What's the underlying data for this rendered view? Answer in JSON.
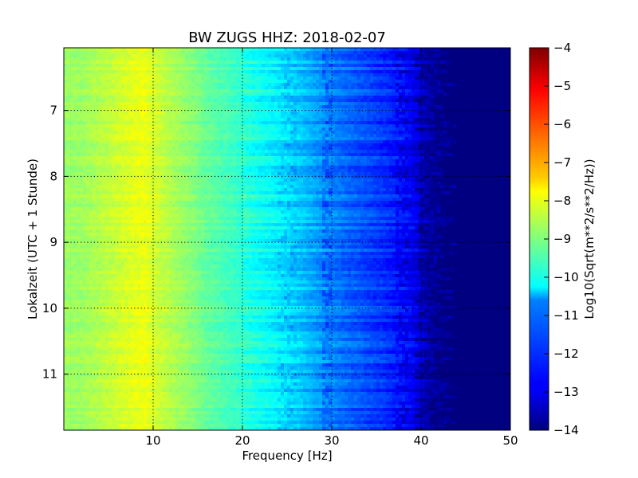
{
  "chart_data": {
    "type": "heatmap",
    "title": "BW ZUGS HHZ: 2018-02-07",
    "xlabel": "Frequency [Hz]",
    "ylabel": "Lokalzeit (UTC + 1 Stunde)",
    "colorbar_label": "Log10(Sqrt(m**2/s**2/Hz))",
    "xlim": [
      0,
      50
    ],
    "ylim": [
      6.05,
      11.85
    ],
    "y_inverted": true,
    "x_ticks": [
      10,
      20,
      30,
      40,
      50
    ],
    "y_ticks": [
      7,
      8,
      9,
      10,
      11
    ],
    "colorbar_ticks": [
      -14,
      -13,
      -12,
      -11,
      -10,
      -9,
      -8,
      -7,
      -6,
      -5,
      -4
    ],
    "colorbar_range": [
      -14,
      -4
    ],
    "colormap": "jet",
    "grid": true,
    "spectrum_profile": {
      "frequency_hz": [
        0,
        2,
        5,
        8,
        9,
        10,
        12,
        14,
        16,
        19,
        22,
        25,
        27,
        30,
        33,
        36,
        38,
        39.5,
        41,
        42,
        44,
        50
      ],
      "log10_amplitude": [
        -8.7,
        -8.7,
        -8.35,
        -8.0,
        -7.9,
        -8.15,
        -8.5,
        -8.85,
        -9.25,
        -9.65,
        -10.1,
        -10.5,
        -10.9,
        -11.5,
        -11.9,
        -12.3,
        -12.6,
        -13.0,
        -13.6,
        -14.0,
        -14.0,
        -14.0
      ]
    }
  }
}
